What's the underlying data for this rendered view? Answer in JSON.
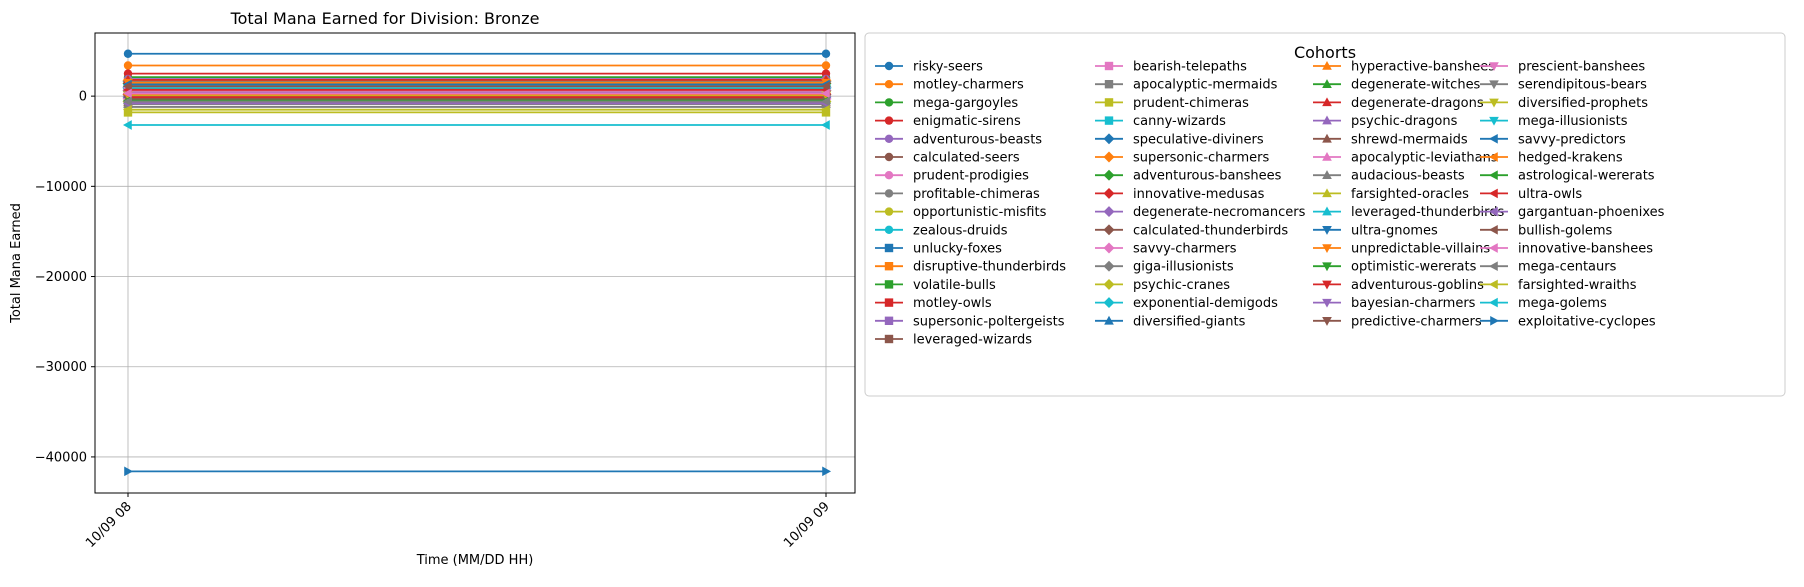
{
  "chart_data": {
    "type": "line",
    "title": "Total Mana Earned for Division: Bronze",
    "xlabel": "Time (MM/DD HH)",
    "ylabel": "Total Mana Earned",
    "x": [
      "10/09 08",
      "10/09 09"
    ],
    "yticks": [
      0,
      -10000,
      -20000,
      -30000,
      -40000
    ],
    "ylim": [
      -44000,
      7000
    ],
    "grid": true,
    "legend": {
      "title": "Cohorts",
      "placement": "outside-right",
      "columns": 4
    },
    "series": [
      {
        "name": "risky-seers",
        "values": [
          4700,
          4700
        ],
        "color": "#1f77b4",
        "marker": "circle"
      },
      {
        "name": "motley-charmers",
        "values": [
          3400,
          3400
        ],
        "color": "#ff7f0e",
        "marker": "circle"
      },
      {
        "name": "mega-gargoyles",
        "values": [
          2100,
          2100
        ],
        "color": "#2ca02c",
        "marker": "circle"
      },
      {
        "name": "enigmatic-sirens",
        "values": [
          2500,
          2500
        ],
        "color": "#d62728",
        "marker": "circle"
      },
      {
        "name": "adventurous-beasts",
        "values": [
          1900,
          1900
        ],
        "color": "#9467bd",
        "marker": "circle"
      },
      {
        "name": "calculated-seers",
        "values": [
          1500,
          1500
        ],
        "color": "#8c564b",
        "marker": "circle"
      },
      {
        "name": "prudent-prodigies",
        "values": [
          1200,
          1200
        ],
        "color": "#e377c2",
        "marker": "circle"
      },
      {
        "name": "profitable-chimeras",
        "values": [
          900,
          900
        ],
        "color": "#7f7f7f",
        "marker": "circle"
      },
      {
        "name": "opportunistic-misfits",
        "values": [
          600,
          600
        ],
        "color": "#bcbd22",
        "marker": "circle"
      },
      {
        "name": "zealous-druids",
        "values": [
          700,
          700
        ],
        "color": "#17becf",
        "marker": "circle"
      },
      {
        "name": "unlucky-foxes",
        "values": [
          1100,
          1100
        ],
        "color": "#1f77b4",
        "marker": "square"
      },
      {
        "name": "disruptive-thunderbirds",
        "values": [
          800,
          800
        ],
        "color": "#ff7f0e",
        "marker": "square"
      },
      {
        "name": "volatile-bulls",
        "values": [
          300,
          300
        ],
        "color": "#2ca02c",
        "marker": "square"
      },
      {
        "name": "motley-owls",
        "values": [
          100,
          100
        ],
        "color": "#d62728",
        "marker": "square"
      },
      {
        "name": "supersonic-poltergeists",
        "values": [
          500,
          500
        ],
        "color": "#9467bd",
        "marker": "square"
      },
      {
        "name": "leveraged-wizards",
        "values": [
          -200,
          -200
        ],
        "color": "#8c564b",
        "marker": "square"
      },
      {
        "name": "bearish-telepaths",
        "values": [
          400,
          400
        ],
        "color": "#e377c2",
        "marker": "square"
      },
      {
        "name": "apocalyptic-mermaids",
        "values": [
          -500,
          -500
        ],
        "color": "#7f7f7f",
        "marker": "square"
      },
      {
        "name": "prudent-chimeras",
        "values": [
          -1800,
          -1800
        ],
        "color": "#bcbd22",
        "marker": "square"
      },
      {
        "name": "canny-wizards",
        "values": [
          1300,
          1300
        ],
        "color": "#17becf",
        "marker": "square"
      },
      {
        "name": "speculative-diviners",
        "values": [
          1000,
          1000
        ],
        "color": "#1f77b4",
        "marker": "diamond"
      },
      {
        "name": "supersonic-charmers",
        "values": [
          1700,
          1700
        ],
        "color": "#ff7f0e",
        "marker": "diamond"
      },
      {
        "name": "adventurous-banshees",
        "values": [
          1400,
          1400
        ],
        "color": "#2ca02c",
        "marker": "diamond"
      },
      {
        "name": "innovative-medusas",
        "values": [
          200,
          200
        ],
        "color": "#d62728",
        "marker": "diamond"
      },
      {
        "name": "degenerate-necromancers",
        "values": [
          -100,
          -100
        ],
        "color": "#9467bd",
        "marker": "diamond"
      },
      {
        "name": "calculated-thunderbirds",
        "values": [
          600,
          600
        ],
        "color": "#8c564b",
        "marker": "diamond"
      },
      {
        "name": "savvy-charmers",
        "values": [
          -300,
          -300
        ],
        "color": "#e377c2",
        "marker": "diamond"
      },
      {
        "name": "giga-illusionists",
        "values": [
          1600,
          1600
        ],
        "color": "#7f7f7f",
        "marker": "diamond"
      },
      {
        "name": "psychic-cranes",
        "values": [
          -600,
          -600
        ],
        "color": "#bcbd22",
        "marker": "diamond"
      },
      {
        "name": "exponential-demigods",
        "values": [
          900,
          900
        ],
        "color": "#17becf",
        "marker": "diamond"
      },
      {
        "name": "diversified-giants",
        "values": [
          200,
          200
        ],
        "color": "#1f77b4",
        "marker": "triangle-up"
      },
      {
        "name": "hyperactive-banshees",
        "values": [
          700,
          700
        ],
        "color": "#ff7f0e",
        "marker": "triangle-up"
      },
      {
        "name": "degenerate-witches",
        "values": [
          -400,
          -400
        ],
        "color": "#2ca02c",
        "marker": "triangle-up"
      },
      {
        "name": "degenerate-dragons",
        "values": [
          1800,
          1800
        ],
        "color": "#d62728",
        "marker": "triangle-up"
      },
      {
        "name": "psychic-dragons",
        "values": [
          300,
          300
        ],
        "color": "#9467bd",
        "marker": "triangle-up"
      },
      {
        "name": "shrewd-mermaids",
        "values": [
          -700,
          -700
        ],
        "color": "#8c564b",
        "marker": "triangle-up"
      },
      {
        "name": "apocalyptic-leviathans",
        "values": [
          1000,
          1000
        ],
        "color": "#e377c2",
        "marker": "triangle-up"
      },
      {
        "name": "audacious-beasts",
        "values": [
          -900,
          -900
        ],
        "color": "#7f7f7f",
        "marker": "triangle-up"
      },
      {
        "name": "farsighted-oracles",
        "values": [
          500,
          500
        ],
        "color": "#bcbd22",
        "marker": "triangle-up"
      },
      {
        "name": "leveraged-thunderbirds",
        "values": [
          1200,
          1200
        ],
        "color": "#17becf",
        "marker": "triangle-up"
      },
      {
        "name": "ultra-gnomes",
        "values": [
          -200,
          -200
        ],
        "color": "#1f77b4",
        "marker": "triangle-down"
      },
      {
        "name": "unpredictable-villains",
        "values": [
          1500,
          1500
        ],
        "color": "#ff7f0e",
        "marker": "triangle-down"
      },
      {
        "name": "optimistic-wererats",
        "values": [
          800,
          800
        ],
        "color": "#2ca02c",
        "marker": "triangle-down"
      },
      {
        "name": "adventurous-goblins",
        "values": [
          -100,
          -100
        ],
        "color": "#d62728",
        "marker": "triangle-down"
      },
      {
        "name": "bayesian-charmers",
        "values": [
          400,
          400
        ],
        "color": "#9467bd",
        "marker": "triangle-down"
      },
      {
        "name": "predictive-charmers",
        "values": [
          -300,
          -300
        ],
        "color": "#8c564b",
        "marker": "triangle-down"
      },
      {
        "name": "prescient-banshees",
        "values": [
          600,
          600
        ],
        "color": "#e377c2",
        "marker": "triangle-down"
      },
      {
        "name": "serendipitous-bears",
        "values": [
          -1200,
          -1200
        ],
        "color": "#7f7f7f",
        "marker": "triangle-down"
      },
      {
        "name": "diversified-prophets",
        "values": [
          100,
          100
        ],
        "color": "#bcbd22",
        "marker": "triangle-down"
      },
      {
        "name": "mega-illusionists",
        "values": [
          900,
          900
        ],
        "color": "#17becf",
        "marker": "triangle-down"
      },
      {
        "name": "savvy-predictors",
        "values": [
          1300,
          1300
        ],
        "color": "#1f77b4",
        "marker": "triangle-left"
      },
      {
        "name": "hedged-krakens",
        "values": [
          200,
          200
        ],
        "color": "#ff7f0e",
        "marker": "triangle-left"
      },
      {
        "name": "astrological-wererats",
        "values": [
          -500,
          -500
        ],
        "color": "#2ca02c",
        "marker": "triangle-left"
      },
      {
        "name": "ultra-owls",
        "values": [
          700,
          700
        ],
        "color": "#d62728",
        "marker": "triangle-left"
      },
      {
        "name": "gargantuan-phoenixes",
        "values": [
          -800,
          -800
        ],
        "color": "#9467bd",
        "marker": "triangle-left"
      },
      {
        "name": "bullish-golems",
        "values": [
          1100,
          1100
        ],
        "color": "#8c564b",
        "marker": "triangle-left"
      },
      {
        "name": "innovative-banshees",
        "values": [
          300,
          300
        ],
        "color": "#e377c2",
        "marker": "triangle-left"
      },
      {
        "name": "mega-centaurs",
        "values": [
          -600,
          -600
        ],
        "color": "#7f7f7f",
        "marker": "triangle-left"
      },
      {
        "name": "farsighted-wraiths",
        "values": [
          -1500,
          -1500
        ],
        "color": "#bcbd22",
        "marker": "triangle-left"
      },
      {
        "name": "mega-golems",
        "values": [
          -3200,
          -3200
        ],
        "color": "#17becf",
        "marker": "triangle-left"
      },
      {
        "name": "exploitative-cyclopes",
        "values": [
          -41600,
          -41600
        ],
        "color": "#1f77b4",
        "marker": "triangle-right"
      }
    ]
  }
}
